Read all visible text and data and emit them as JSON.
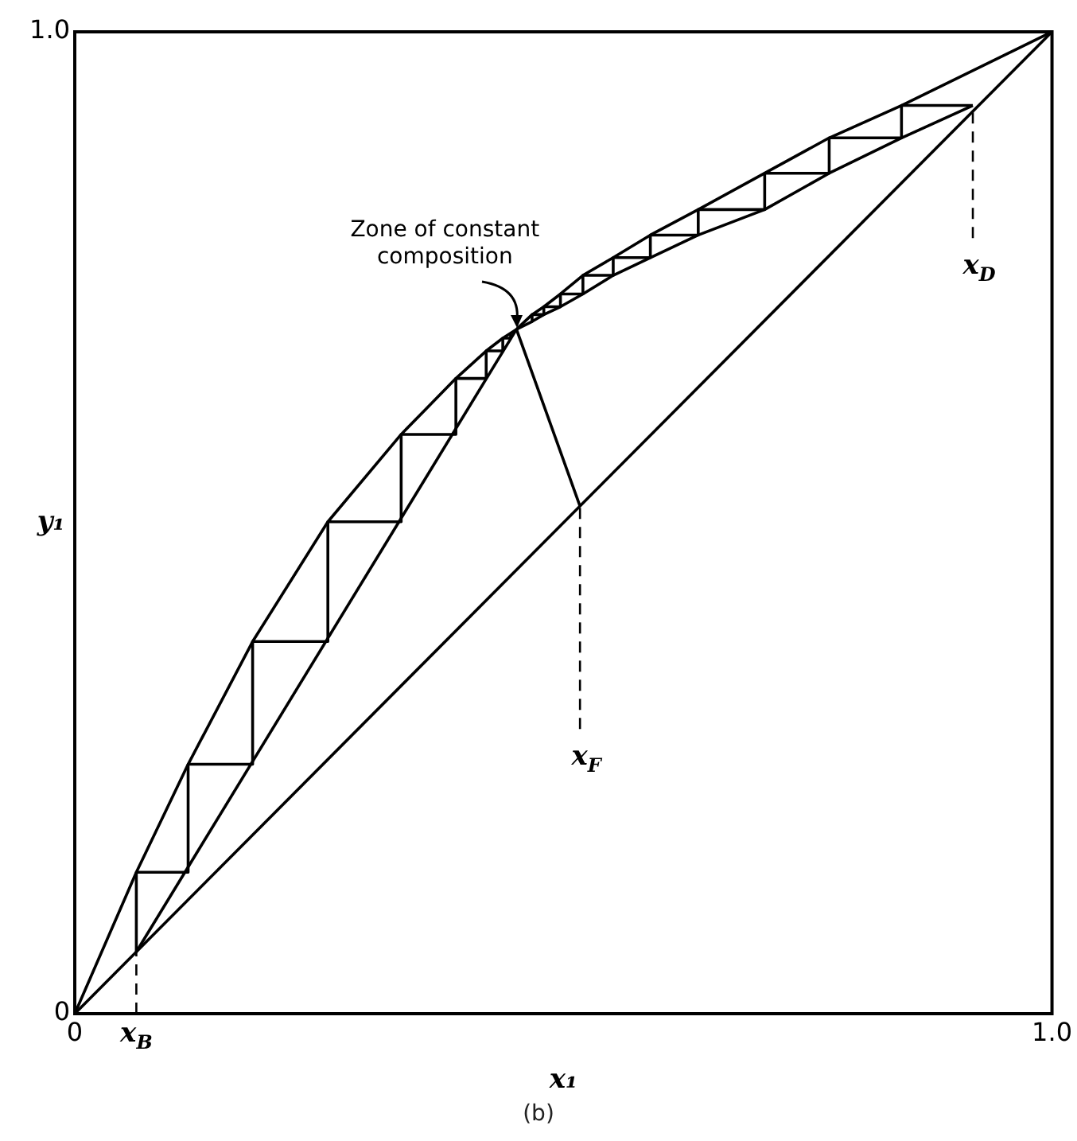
{
  "chart_data": {
    "type": "line",
    "xlabel": "x₁",
    "ylabel": "y₁",
    "xlim": [
      0,
      1
    ],
    "ylim": [
      0,
      1
    ],
    "xticks": [
      0,
      {
        "value": 0.063,
        "label": "x$_{B}$"
      },
      {
        "value": 1,
        "label": "1.0"
      }
    ],
    "yticks": [
      0,
      {
        "value": 1,
        "label": "1.0"
      }
    ],
    "grid": false,
    "legend": false,
    "marker": "none",
    "series": [
      {
        "color": "#000000",
        "x": [
          0,
          0.063,
          0.116,
          0.182,
          0.259,
          0.334,
          0.39,
          0.421,
          0.438,
          0.452,
          0.468,
          0.48,
          0.497,
          0.52,
          0.551,
          0.589,
          0.638,
          0.706,
          0.772,
          0.846,
          1
        ],
        "values": [
          0,
          0.144,
          0.254,
          0.379,
          0.501,
          0.59,
          0.647,
          0.675,
          0.688,
          0.697,
          0.712,
          0.72,
          0.733,
          0.752,
          0.77,
          0.793,
          0.819,
          0.856,
          0.892,
          0.925,
          1
        ]
      },
      {
        "color": "#000000",
        "x": [
          0,
          1
        ],
        "values": [
          0,
          1
        ]
      },
      {
        "color": "#000000",
        "x": [
          0.063,
          0.452
        ],
        "values": [
          0.063,
          0.697
        ]
      },
      {
        "color": "#000000",
        "x": [
          0.452,
          0.468,
          0.48,
          0.497,
          0.52,
          0.551,
          0.589,
          0.638,
          0.706,
          0.772,
          0.846,
          0.919
        ],
        "values": [
          0.697,
          0.705,
          0.712,
          0.72,
          0.733,
          0.752,
          0.77,
          0.793,
          0.819,
          0.856,
          0.892,
          0.925
        ]
      },
      {
        "color": "#000000",
        "x": [
          0.517,
          0.452
        ],
        "values": [
          0.517,
          0.697
        ]
      },
      {
        "color": "#000000",
        "x": [
          0.063,
          0.063,
          0.116,
          0.116,
          0.182,
          0.182,
          0.259,
          0.259,
          0.334,
          0.334,
          0.39,
          0.39,
          0.421,
          0.421,
          0.438,
          0.438,
          0.446,
          0.446
        ],
        "values": [
          0.063,
          0.144,
          0.144,
          0.254,
          0.254,
          0.379,
          0.379,
          0.501,
          0.501,
          0.59,
          0.59,
          0.647,
          0.647,
          0.675,
          0.675,
          0.688,
          0.688,
          0.693
        ]
      },
      {
        "color": "#000000",
        "x": [
          0.919,
          0.846,
          0.846,
          0.772,
          0.772,
          0.706,
          0.706,
          0.638,
          0.638,
          0.589,
          0.589,
          0.551,
          0.551,
          0.52,
          0.52,
          0.497,
          0.497,
          0.48,
          0.48,
          0.468,
          0.468
        ],
        "values": [
          0.925,
          0.925,
          0.892,
          0.892,
          0.856,
          0.856,
          0.819,
          0.819,
          0.793,
          0.793,
          0.77,
          0.77,
          0.752,
          0.752,
          0.733,
          0.733,
          0.72,
          0.72,
          0.712,
          0.712,
          0.705
        ]
      },
      {
        "color": "#000000",
        "line_style": "dashed",
        "x": [
          0.063,
          0.063
        ],
        "values": [
          0,
          0.063
        ]
      },
      {
        "color": "#000000",
        "line_style": "dashed",
        "x": [
          0.517,
          0.517
        ],
        "values": [
          0.29,
          0.517
        ]
      },
      {
        "color": "#000000",
        "line_style": "dashed",
        "x": [
          0.919,
          0.919
        ],
        "values": [
          0.79,
          0.925
        ]
      }
    ],
    "annotations": [
      {
        "text": "Zone of constant composition",
        "x": 0.452,
        "y": 0.697
      },
      {
        "text": "x$_{F}$",
        "x": 0.517,
        "y": 0.29
      },
      {
        "text": "x$_{D}$",
        "x": 0.919,
        "y": 0.79
      },
      "(b)"
    ]
  }
}
